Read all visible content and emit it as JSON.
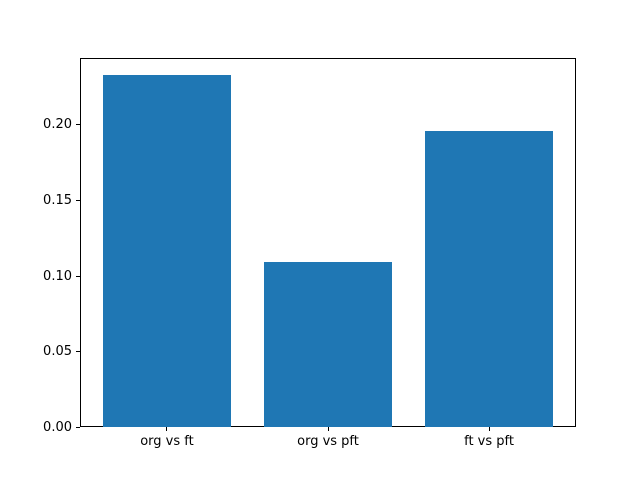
{
  "chart_data": {
    "type": "bar",
    "title": "",
    "xlabel": "",
    "ylabel": "",
    "categories": [
      "org vs ft",
      "org vs pft",
      "ft vs pft"
    ],
    "values": [
      0.233,
      0.109,
      0.196
    ],
    "yticks": [
      {
        "value": 0.0,
        "label": "0.00"
      },
      {
        "value": 0.05,
        "label": "0.05"
      },
      {
        "value": 0.1,
        "label": "0.10"
      },
      {
        "value": 0.15,
        "label": "0.15"
      },
      {
        "value": 0.2,
        "label": "0.20"
      }
    ],
    "ylim": [
      0,
      0.2446
    ],
    "xlim": [
      -0.54,
      2.54
    ],
    "bar_width": 0.8,
    "bar_color": "#1f77b4",
    "axis_color": "#000000",
    "background_color": "#ffffff",
    "grid": false,
    "legend": null
  }
}
